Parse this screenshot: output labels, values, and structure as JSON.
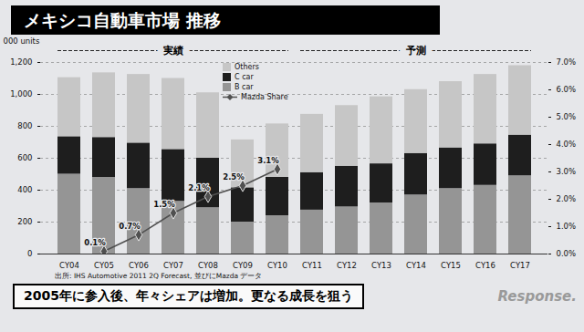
{
  "chart_data": {
    "type": "bar",
    "stacked": true,
    "title": "メキシコ自動車市場 推移",
    "ylabel": "000 units",
    "source": "出所: IHS Automotive 2011 2Q Forecast, 並びにMazda データ",
    "caption": "2005年に参入後、年々シェアは増加。更なる成長を狙う",
    "watermark": "Response.",
    "periods": [
      {
        "label": "実績",
        "from": "CY04",
        "to": "CY10"
      },
      {
        "label": "予測",
        "from": "CY11",
        "to": "CY17"
      }
    ],
    "categories": [
      "CY04",
      "CY05",
      "CY06",
      "CY07",
      "CY08",
      "CY09",
      "CY10",
      "CY11",
      "CY12",
      "CY13",
      "CY14",
      "CY15",
      "CY16",
      "CY17"
    ],
    "series": [
      {
        "name": "Others",
        "color": "#c6c6c6",
        "values": [
          370,
          405,
          430,
          445,
          410,
          300,
          335,
          365,
          380,
          420,
          400,
          415,
          435,
          435
        ]
      },
      {
        "name": "C car",
        "color": "#1e1e1e",
        "values": [
          235,
          250,
          285,
          325,
          310,
          215,
          240,
          235,
          255,
          245,
          260,
          255,
          260,
          255
        ]
      },
      {
        "name": "B car",
        "color": "#959595",
        "values": [
          500,
          480,
          410,
          330,
          290,
          200,
          240,
          275,
          295,
          320,
          370,
          410,
          430,
          490
        ]
      },
      {
        "name": "Mazda Share",
        "type": "line",
        "axis": "y2",
        "color": "#505050",
        "marker": "diamond",
        "data_labels": true,
        "values": [
          null,
          0.1,
          0.7,
          1.5,
          2.1,
          2.5,
          3.1,
          null,
          null,
          null,
          null,
          null,
          null,
          null
        ],
        "value_labels": [
          null,
          "0.1%",
          "0.7%",
          "1.5%",
          "2.1%",
          "2.5%",
          "3.1%",
          null,
          null,
          null,
          null,
          null,
          null,
          null
        ]
      }
    ],
    "ylim": [
      0,
      1200
    ],
    "yticks": [
      0,
      200,
      400,
      600,
      800,
      {
        "value": 1000,
        "label": "1,000"
      },
      {
        "value": 1200,
        "label": "1,200"
      }
    ],
    "y2lim": [
      0,
      7
    ],
    "y2ticks": [
      {
        "value": 0,
        "label": "0.0%"
      },
      {
        "value": 1,
        "label": "1.0%"
      },
      {
        "value": 2,
        "label": "2.0%"
      },
      {
        "value": 3,
        "label": "3.0%"
      },
      {
        "value": 4,
        "label": "4.0%"
      },
      {
        "value": 5,
        "label": "5.0%"
      },
      {
        "value": 6,
        "label": "6.0%"
      },
      {
        "value": 7,
        "label": "7.0%"
      }
    ],
    "grid": true,
    "legend": "top"
  }
}
